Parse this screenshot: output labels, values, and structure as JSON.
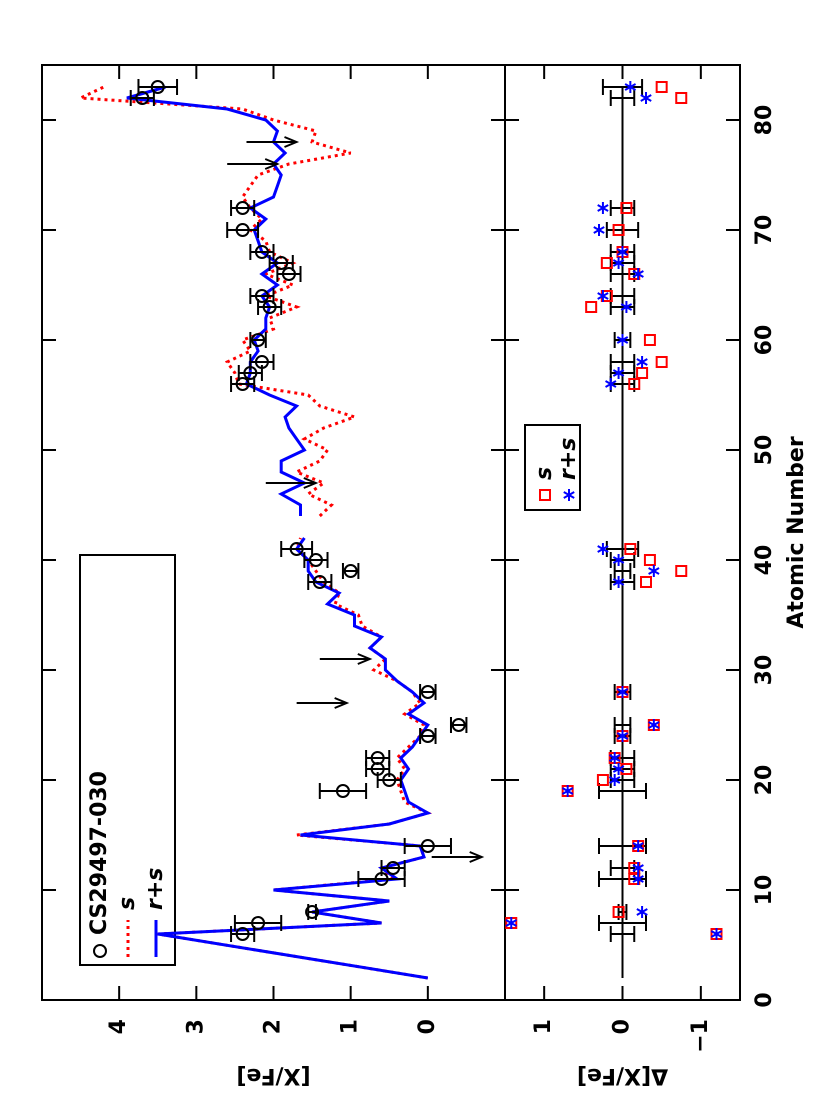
{
  "chart_data": [
    {
      "type": "line",
      "ylabel": "[X/Fe]",
      "xlim": [
        0,
        85
      ],
      "ylim": [
        -1,
        5
      ],
      "xticks": [
        0,
        10,
        20,
        30,
        40,
        50,
        60,
        70,
        80
      ],
      "yticks": [
        0,
        1,
        2,
        3,
        4
      ],
      "legend": "upper left",
      "observed": {
        "name": "CS29497-030",
        "color": "#000000",
        "x": [
          6,
          7,
          8,
          11,
          12,
          14,
          19,
          20,
          21,
          22,
          24,
          25,
          28,
          38,
          39,
          40,
          41,
          56,
          57,
          58,
          60,
          63,
          64,
          66,
          67,
          68,
          70,
          72,
          82,
          83
        ],
        "values": [
          2.4,
          2.2,
          1.5,
          0.6,
          0.45,
          0.0,
          1.1,
          0.5,
          0.65,
          0.65,
          0.0,
          -0.4,
          0.0,
          1.4,
          1.0,
          1.45,
          1.7,
          2.4,
          2.3,
          2.15,
          2.2,
          2.05,
          2.15,
          1.8,
          1.9,
          2.15,
          2.4,
          2.4,
          3.7,
          3.5
        ],
        "errors": [
          0.15,
          0.3,
          0.05,
          0.3,
          0.15,
          0.3,
          0.3,
          0.15,
          0.15,
          0.15,
          0.1,
          0.1,
          0.1,
          0.15,
          0.1,
          0.15,
          0.2,
          0.15,
          0.15,
          0.15,
          0.1,
          0.15,
          0.15,
          0.15,
          0.15,
          0.15,
          0.2,
          0.15,
          0.15,
          0.25
        ]
      },
      "upper_limits": {
        "color": "#000000",
        "x": [
          13,
          27,
          31,
          47,
          76,
          78
        ],
        "values": [
          -0.05,
          1.7,
          1.4,
          2.1,
          2.6,
          2.35
        ]
      },
      "series": [
        {
          "name": "s",
          "color": "#ff0000",
          "dash": "dotted",
          "x": [
            2,
            6,
            7,
            8,
            9,
            10,
            11,
            12,
            13,
            14,
            15,
            16,
            17,
            18,
            19,
            20,
            21,
            22,
            23,
            24,
            25,
            26,
            27,
            28,
            29,
            30,
            31,
            32,
            33,
            34,
            35,
            36,
            37,
            38,
            39,
            40,
            41,
            42,
            43,
            44,
            45,
            46,
            47,
            48,
            49,
            50,
            51,
            52,
            53,
            54,
            55,
            56,
            57,
            58,
            59,
            60,
            61,
            62,
            63,
            64,
            65,
            66,
            67,
            68,
            69,
            70,
            71,
            72,
            73,
            74,
            75,
            76,
            77,
            78,
            79,
            80,
            81,
            82,
            83
          ],
          "values": [
            0,
            3.5,
            0.6,
            1.5,
            0.5,
            2.0,
            0.45,
            0.6,
            0.05,
            0.1,
            1.7,
            0.5,
            0.0,
            0.3,
            0.35,
            0.4,
            0.3,
            0.4,
            0.25,
            0.1,
            0.05,
            0.3,
            0.1,
            0.2,
            0.4,
            0.7,
            0.55,
            0.75,
            0.6,
            0.85,
            0.9,
            1.2,
            1.15,
            1.35,
            1.45,
            1.55,
            1.7,
            1.65,
            null,
            1.4,
            1.25,
            1.55,
            1.35,
            1.7,
            1.4,
            1.3,
            1.6,
            1.35,
            0.95,
            1.4,
            1.55,
            2.45,
            2.5,
            2.6,
            2.3,
            2.4,
            2.0,
            2.05,
            1.7,
            2.1,
            1.75,
            2.1,
            1.75,
            2.05,
            2.1,
            2.3,
            2.15,
            2.3,
            2.4,
            2.3,
            2.2,
            1.8,
            1.0,
            1.5,
            1.45,
            2.0,
            2.4,
            4.5,
            4.2
          ]
        },
        {
          "name": "r+s",
          "color": "#0000ff",
          "dash": "solid",
          "x": [
            2,
            6,
            7,
            8,
            9,
            10,
            11,
            12,
            13,
            14,
            15,
            16,
            17,
            18,
            19,
            20,
            21,
            22,
            23,
            24,
            25,
            26,
            27,
            28,
            29,
            30,
            31,
            32,
            33,
            34,
            35,
            36,
            37,
            38,
            39,
            40,
            41,
            42,
            43,
            44,
            45,
            46,
            47,
            48,
            49,
            50,
            51,
            52,
            53,
            54,
            55,
            56,
            57,
            58,
            59,
            60,
            61,
            62,
            63,
            64,
            65,
            66,
            67,
            68,
            69,
            70,
            71,
            72,
            73,
            74,
            75,
            76,
            77,
            78,
            79,
            80,
            81,
            82,
            83
          ],
          "values": [
            0,
            3.5,
            0.6,
            1.5,
            0.5,
            2.0,
            0.4,
            0.6,
            0.05,
            0.1,
            1.65,
            0.5,
            0.0,
            0.25,
            0.3,
            0.35,
            0.25,
            0.35,
            0.2,
            0.1,
            0.0,
            0.25,
            0.05,
            0.2,
            0.4,
            0.55,
            0.55,
            0.75,
            0.6,
            0.95,
            0.95,
            1.3,
            1.15,
            1.45,
            1.55,
            1.55,
            1.7,
            1.6,
            null,
            1.65,
            1.65,
            1.9,
            1.6,
            1.9,
            1.9,
            1.6,
            1.7,
            1.8,
            1.85,
            1.7,
            2.05,
            2.35,
            2.3,
            2.3,
            2.2,
            2.25,
            2.1,
            2.1,
            2.05,
            2.15,
            1.95,
            2.15,
            1.95,
            2.15,
            2.2,
            2.25,
            2.1,
            2.3,
            2.0,
            1.95,
            1.9,
            2.0,
            1.85,
            2.0,
            1.95,
            2.1,
            2.6,
            3.9,
            3.4
          ]
        }
      ]
    },
    {
      "type": "scatter",
      "xlabel": "Atomic Number",
      "ylabel": "Δ[X/Fe]",
      "xlim": [
        0,
        85
      ],
      "ylim": [
        -1.5,
        1.5
      ],
      "xticks": [
        0,
        10,
        20,
        30,
        40,
        50,
        60,
        70,
        80
      ],
      "yticks": [
        {
          "value": -1,
          "label": "−1"
        },
        0,
        1
      ],
      "legend": "upper center",
      "series": [
        {
          "name": "s",
          "color": "#ff0000",
          "marker": "square",
          "x": [
            6,
            7,
            8,
            11,
            12,
            14,
            19,
            20,
            21,
            22,
            24,
            25,
            28,
            38,
            39,
            40,
            41,
            56,
            57,
            58,
            60,
            63,
            64,
            66,
            67,
            68,
            70,
            72,
            82,
            83
          ],
          "values": [
            -1.2,
            1.42,
            0.05,
            -0.15,
            -0.15,
            -0.2,
            0.7,
            0.25,
            -0.05,
            0.1,
            0.0,
            -0.4,
            0.0,
            -0.3,
            -0.75,
            -0.35,
            -0.1,
            -0.15,
            -0.25,
            -0.5,
            -0.35,
            0.4,
            0.2,
            -0.15,
            0.2,
            0.0,
            0.05,
            -0.05,
            -0.75,
            -0.5
          ]
        },
        {
          "name": "r+s",
          "color": "#0000ff",
          "marker": "star",
          "x": [
            6,
            7,
            8,
            11,
            12,
            14,
            19,
            20,
            21,
            22,
            24,
            25,
            28,
            38,
            39,
            40,
            41,
            56,
            57,
            58,
            60,
            63,
            64,
            66,
            67,
            68,
            70,
            72,
            82,
            83
          ],
          "values": [
            -1.2,
            1.42,
            -0.25,
            -0.2,
            -0.2,
            -0.2,
            0.7,
            0.1,
            0.05,
            0.1,
            0.0,
            -0.4,
            0.0,
            0.05,
            -0.4,
            0.05,
            0.25,
            0.15,
            0.05,
            -0.25,
            0.0,
            -0.05,
            0.25,
            -0.2,
            0.05,
            0.0,
            0.3,
            0.25,
            -0.3,
            -0.1
          ]
        }
      ]
    }
  ]
}
